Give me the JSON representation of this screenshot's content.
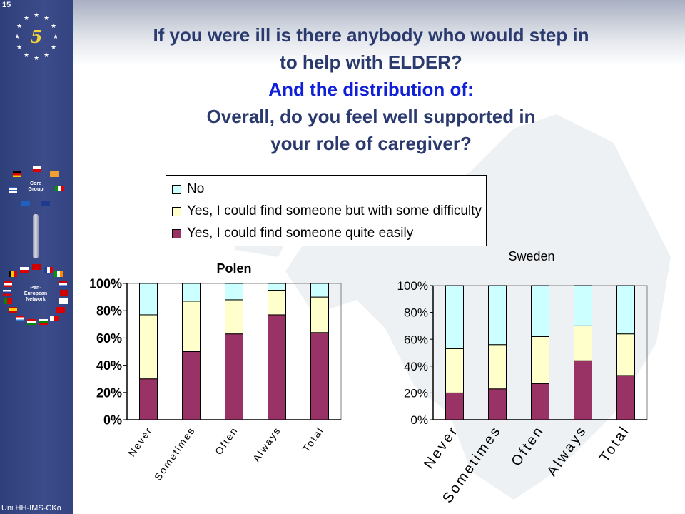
{
  "slide": {
    "number": "15",
    "footer": "Uni HH-IMS-CKo"
  },
  "sidebar": {
    "core_group_line1": "Core",
    "core_group_line2": "Group",
    "network_line1": "Pan-",
    "network_line2": "European",
    "network_line3": "Network"
  },
  "title": {
    "line1": "If you were ill is there anybody who would step in",
    "line2": "to help with ELDER?",
    "line3": "And the distribution of:",
    "line4": "Overall, do you feel well supported in",
    "line5": "your role of caregiver?"
  },
  "colors": {
    "no": "#ccffff",
    "difficulty": "#ffffcc",
    "easily": "#993366",
    "sidebar": "#3c4c8a",
    "title": "#2b3a6e",
    "title_accent": "#1020d8"
  },
  "legend": {
    "items": [
      {
        "label": "No",
        "color": "#ccffff"
      },
      {
        "label": "Yes, I could find someone but with some difficulty",
        "color": "#ffffcc"
      },
      {
        "label": "Yes, I could find someone quite easily",
        "color": "#993366"
      }
    ]
  },
  "chart_data": [
    {
      "type": "bar",
      "stacked": true,
      "title": "Polen",
      "categories": [
        "Never",
        "Sometimes",
        "Often",
        "Always",
        "Total"
      ],
      "y_ticks": [
        "0%",
        "20%",
        "40%",
        "60%",
        "80%",
        "100%"
      ],
      "ylim": [
        0,
        100
      ],
      "series": [
        {
          "name": "Yes, I could find someone quite easily",
          "values": [
            30,
            50,
            63,
            77,
            64
          ]
        },
        {
          "name": "Yes, I could find someone but with some difficulty",
          "values": [
            47,
            37,
            25,
            18,
            26
          ]
        },
        {
          "name": "No",
          "values": [
            23,
            13,
            12,
            5,
            10
          ]
        }
      ]
    },
    {
      "type": "bar",
      "stacked": true,
      "title": "Sweden",
      "categories": [
        "Never",
        "Sometimes",
        "Often",
        "Always",
        "Total"
      ],
      "y_ticks": [
        "0%",
        "20%",
        "40%",
        "60%",
        "80%",
        "100%"
      ],
      "ylim": [
        0,
        100
      ],
      "series": [
        {
          "name": "Yes, I could find someone quite easily",
          "values": [
            20,
            23,
            27,
            44,
            33
          ]
        },
        {
          "name": "Yes, I could find someone but with some difficulty",
          "values": [
            33,
            33,
            35,
            26,
            31
          ]
        },
        {
          "name": "No",
          "values": [
            47,
            44,
            38,
            30,
            36
          ]
        }
      ]
    }
  ]
}
